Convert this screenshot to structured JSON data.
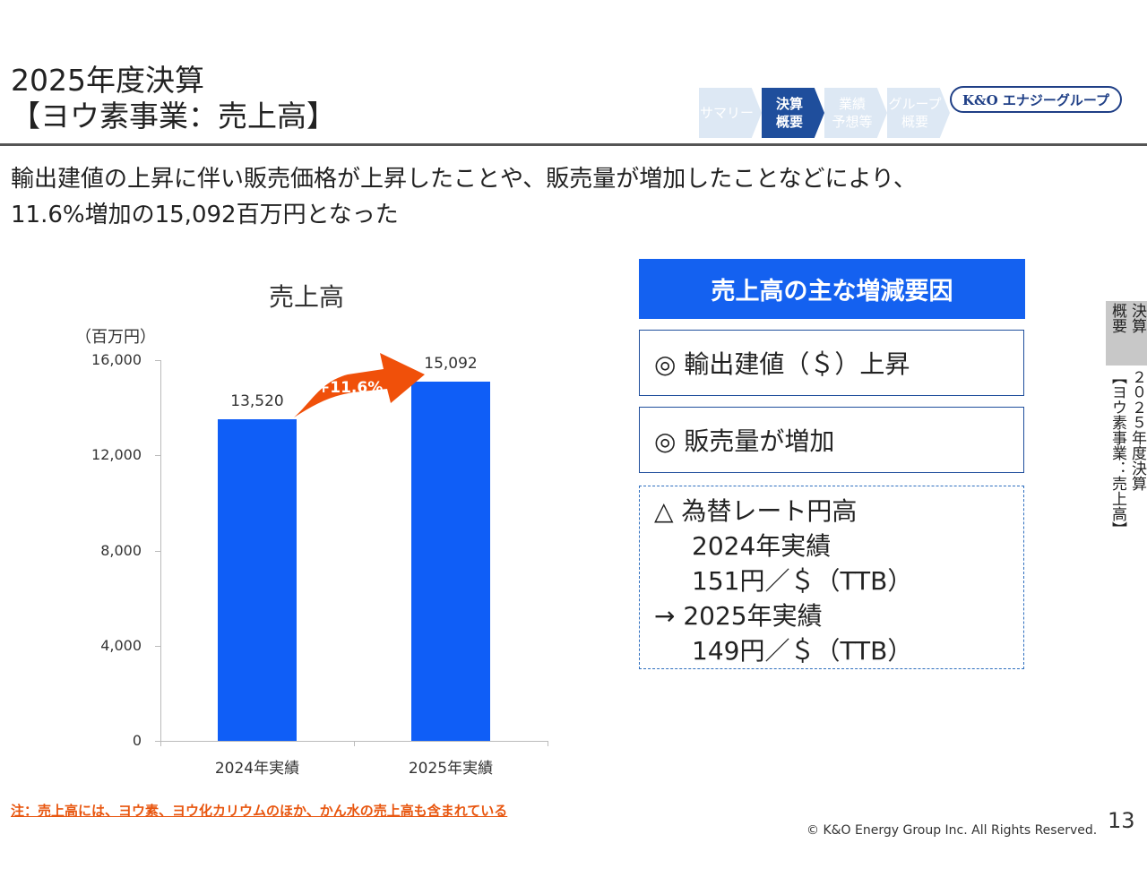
{
  "header": {
    "title_line1": "2025年度決算",
    "title_line2": "【ヨウ素事業：売上高】",
    "logo_text": "K&O エナジーグループ"
  },
  "nav": [
    {
      "label": "サマリー",
      "active": false
    },
    {
      "label": "決算\n概要",
      "active": true
    },
    {
      "label": "業績\n予想等",
      "active": false
    },
    {
      "label": "グループ\n概要",
      "active": false
    }
  ],
  "summary": {
    "line1": "輸出建値の上昇に伴い販売価格が上昇したことや、販売量が増加したことなどにより、",
    "line2": "11.6%増加の15,092百万円となった"
  },
  "chart_data": {
    "type": "bar",
    "title": "売上高",
    "unit_label": "（百万円）",
    "categories": [
      "2024年実績",
      "2025年実績"
    ],
    "values": [
      13520,
      15092
    ],
    "value_labels": [
      "13,520",
      "15,092"
    ],
    "ylim": [
      0,
      16000
    ],
    "yticks": [
      0,
      4000,
      8000,
      12000,
      16000
    ],
    "ytick_labels": [
      "0",
      "4,000",
      "8,000",
      "12,000",
      "16,000"
    ],
    "growth_annotation": "+11.6%",
    "bar_color": "#0f5ef7",
    "arrow_color": "#f0500a",
    "grid": false
  },
  "factors": {
    "header": "売上高の主な増減要因",
    "item1": "◎ 輸出建値（＄）上昇",
    "item2": "◎ 販売量が増加",
    "item3_line1": "△ 為替レート円高",
    "item3_line2": "2024年実績",
    "item3_line3": "151円／＄（TTB）",
    "item3_line4": "→ 2025年実績",
    "item3_line5": "149円／＄（TTB）"
  },
  "side_tab": {
    "col1": "決算",
    "col2": "概要",
    "col3": "２０２５年度決算",
    "col4": "【ヨウ素事業：売上高】"
  },
  "footer": {
    "note": "注：売上高には、ヨウ素、ヨウ化カリウムのほか、かん水の売上高も含まれている",
    "copyright": "© K&O Energy Group Inc. All Rights Reserved.",
    "page_number": "13"
  }
}
